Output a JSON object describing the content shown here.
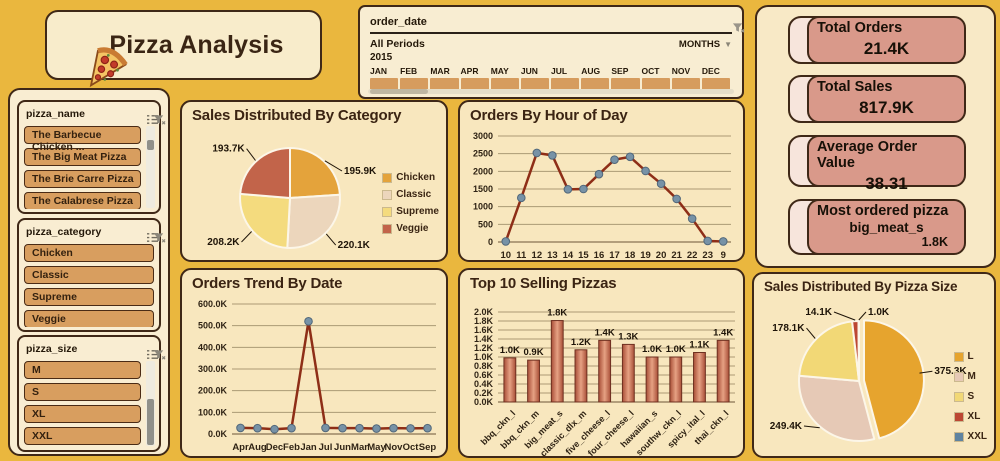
{
  "title": {
    "text": "Pizza Analysis"
  },
  "date_slicer": {
    "field": "order_date",
    "period": "All Periods",
    "granularity": "MONTHS",
    "year": "2015",
    "months": [
      "JAN",
      "FEB",
      "MAR",
      "APR",
      "MAY",
      "JUN",
      "JUL",
      "AUG",
      "SEP",
      "OCT",
      "NOV",
      "DEC"
    ]
  },
  "kpis": [
    {
      "label": "Total Orders",
      "value": "21.4K"
    },
    {
      "label": "Total Sales",
      "value": "817.9K"
    },
    {
      "label": "Average Order Value",
      "value": "38.31"
    },
    {
      "label": "Most ordered pizza",
      "value": "big_meat_s",
      "sub_value": "1.8K"
    }
  ],
  "slicers": [
    {
      "field": "pizza_name",
      "items": [
        "The Barbecue Chicken ...",
        "The Big Meat Pizza",
        "The Brie Carre Pizza",
        "The Calabrese Pizza"
      ],
      "has_scrollbar": true
    },
    {
      "field": "pizza_category",
      "items": [
        "Chicken",
        "Classic",
        "Supreme",
        "Veggie"
      ],
      "has_scrollbar": false
    },
    {
      "field": "pizza_size",
      "items": [
        "M",
        "S",
        "XL",
        "XXL"
      ],
      "has_scrollbar": true
    }
  ],
  "icons": {
    "title_logo": "pizza-slice-icon",
    "slicer_header": [
      "list-check-icon",
      "clear-filter-icon"
    ],
    "date_header": "clear-filter-icon",
    "granularity": "chevron-down-icon"
  },
  "colors": {
    "background": "#EAB73E",
    "panel": "#F8E7BE",
    "panel_light": "#F9EDD2",
    "border": "#3F2817",
    "button": "#D89E5F",
    "kpi_front": "#D9998A",
    "kpi_back": "#F7E5DC",
    "line": "#8E2E17",
    "marker": "#7792A6"
  },
  "chart_data": [
    {
      "id": "category_pie",
      "type": "pie",
      "title": "Sales Distributed By Category",
      "legend_position": "right",
      "slices": [
        {
          "name": "Chicken",
          "value": 195.9,
          "label": "195.9K",
          "color": "#E4A33B"
        },
        {
          "name": "Classic",
          "value": 220.1,
          "label": "220.1K",
          "color": "#ECD6BC"
        },
        {
          "name": "Supreme",
          "value": 208.2,
          "label": "208.2K",
          "color": "#F4DB7E"
        },
        {
          "name": "Veggie",
          "value": 193.7,
          "label": "193.7K",
          "color": "#C2644A"
        }
      ]
    },
    {
      "id": "hourly_orders",
      "type": "line",
      "title": "Orders By Hour of Day",
      "x": [
        "10",
        "11",
        "12",
        "13",
        "14",
        "15",
        "16",
        "17",
        "18",
        "19",
        "20",
        "21",
        "22",
        "23",
        "9"
      ],
      "values": [
        15,
        1250,
        2520,
        2450,
        1490,
        1500,
        1920,
        2330,
        2410,
        2010,
        1650,
        1220,
        660,
        30,
        15
      ],
      "ylim": [
        0,
        3000
      ],
      "ytick_step": 500,
      "grid": true
    },
    {
      "id": "orders_trend",
      "type": "line",
      "title": "Orders Trend By Date",
      "x": [
        "Apr",
        "Aug",
        "Dec",
        "Feb",
        "Jan",
        "Jul",
        "Jun",
        "Mar",
        "May",
        "Nov",
        "Oct",
        "Sep"
      ],
      "values": [
        28,
        27,
        22,
        27,
        520,
        28,
        27,
        27,
        25,
        27,
        26,
        27
      ],
      "unit": "K",
      "ylim": [
        0,
        600
      ],
      "ytick_step": 100,
      "grid": true
    },
    {
      "id": "top10_pizzas",
      "type": "bar",
      "title": "Top 10 Selling Pizzas",
      "categories": [
        "bbq_ckn_l",
        "bbq_ckn_m",
        "big_meat_s",
        "classic_dlx_m",
        "five_cheese_l",
        "four_cheese_l",
        "hawaiian_s",
        "southw_ckn_l",
        "spicy_ital_l",
        "thai_ckn_l"
      ],
      "values": [
        0.98,
        0.93,
        1.81,
        1.16,
        1.37,
        1.28,
        1.0,
        1.0,
        1.1,
        1.37
      ],
      "labels": [
        "1.0K",
        "0.9K",
        "1.8K",
        "1.2K",
        "1.4K",
        "1.3K",
        "1.0K",
        "1.0K",
        "1.1K",
        "1.4K"
      ],
      "unit": "K",
      "ylim": [
        0,
        2.0
      ],
      "ytick_step": 0.2,
      "grid": true
    },
    {
      "id": "size_pie",
      "type": "pie",
      "title": "Sales Distributed By Pizza Size",
      "legend_position": "right",
      "exploded_slice": "L",
      "slices": [
        {
          "name": "L",
          "value": 375.3,
          "label": "375.3K",
          "color": "#E6A42E"
        },
        {
          "name": "M",
          "value": 249.4,
          "label": "249.4K",
          "color": "#E6C9B6"
        },
        {
          "name": "S",
          "value": 178.1,
          "label": "178.1K",
          "color": "#F2D876"
        },
        {
          "name": "XL",
          "value": 14.1,
          "label": "14.1K",
          "color": "#BC4733"
        },
        {
          "name": "XXL",
          "value": 1.0,
          "label": "1.0K",
          "color": "#5F83A0"
        }
      ]
    }
  ]
}
